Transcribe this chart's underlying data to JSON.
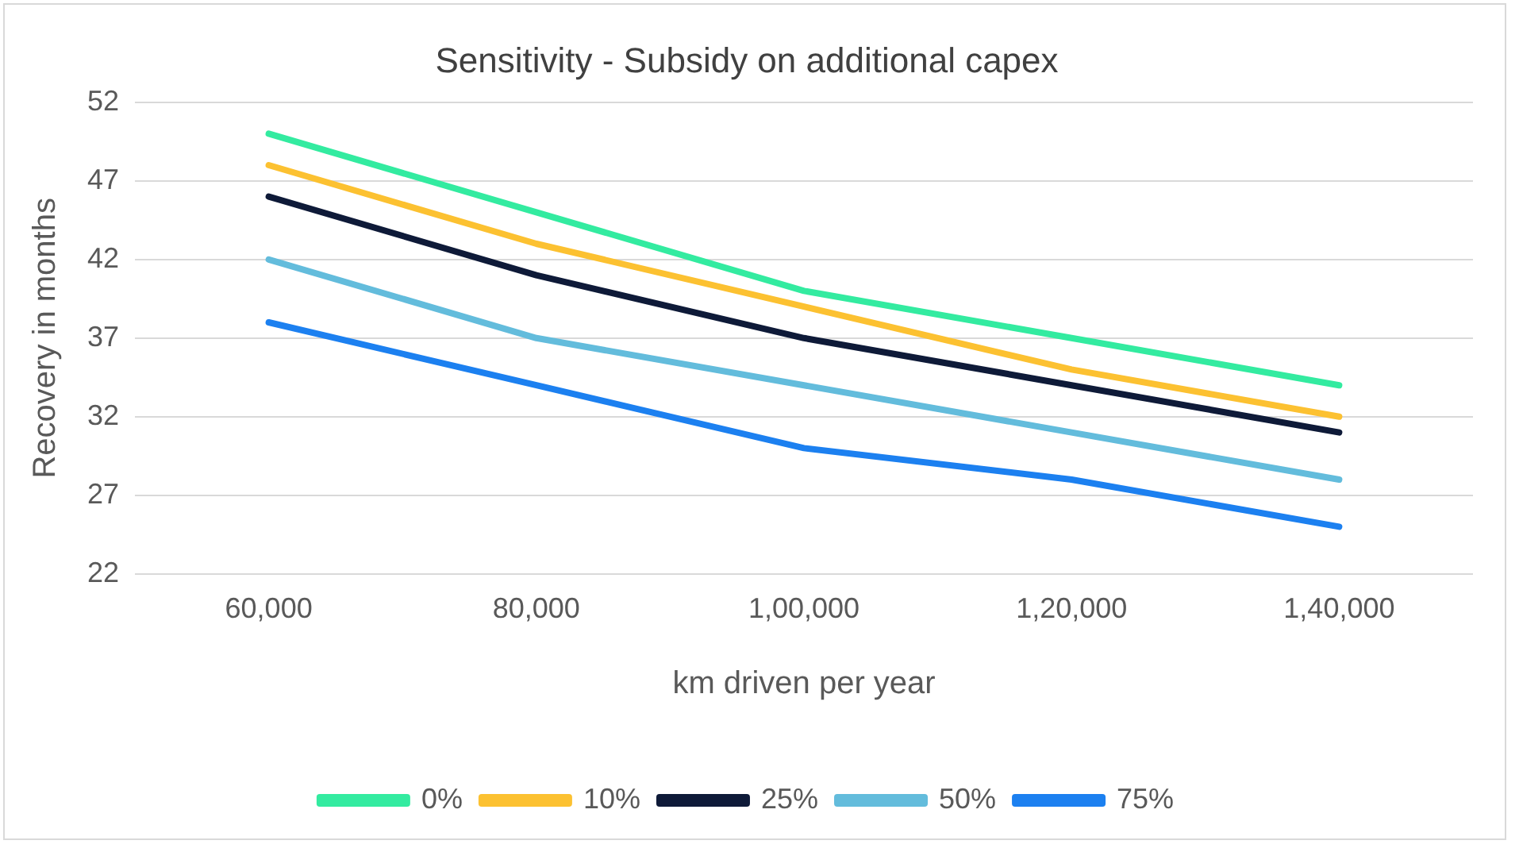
{
  "chart_data": {
    "type": "line",
    "title": "Sensitivity - Subsidy on additional capex",
    "xlabel": "km driven per year",
    "ylabel": "Recovery in months",
    "categories": [
      "60,000",
      "80,000",
      "1,00,000",
      "1,20,000",
      "1,40,000"
    ],
    "series": [
      {
        "name": "0%",
        "color": "#33eba0",
        "values": [
          50,
          45,
          40,
          37,
          34
        ]
      },
      {
        "name": "10%",
        "color": "#fcc131",
        "values": [
          48,
          43,
          39,
          35,
          32
        ]
      },
      {
        "name": "25%",
        "color": "#0e1a38",
        "values": [
          46,
          41,
          37,
          34,
          31
        ]
      },
      {
        "name": "50%",
        "color": "#63bcdc",
        "values": [
          42,
          37,
          34,
          31,
          28
        ]
      },
      {
        "name": "75%",
        "color": "#1c80f0",
        "values": [
          38,
          34,
          30,
          28,
          25
        ]
      }
    ],
    "ylim": [
      22,
      52
    ],
    "yticks": [
      22,
      27,
      32,
      37,
      42,
      47,
      52
    ],
    "grid": "y",
    "legend": "bottom",
    "marker": "none",
    "line_style": "solid"
  }
}
